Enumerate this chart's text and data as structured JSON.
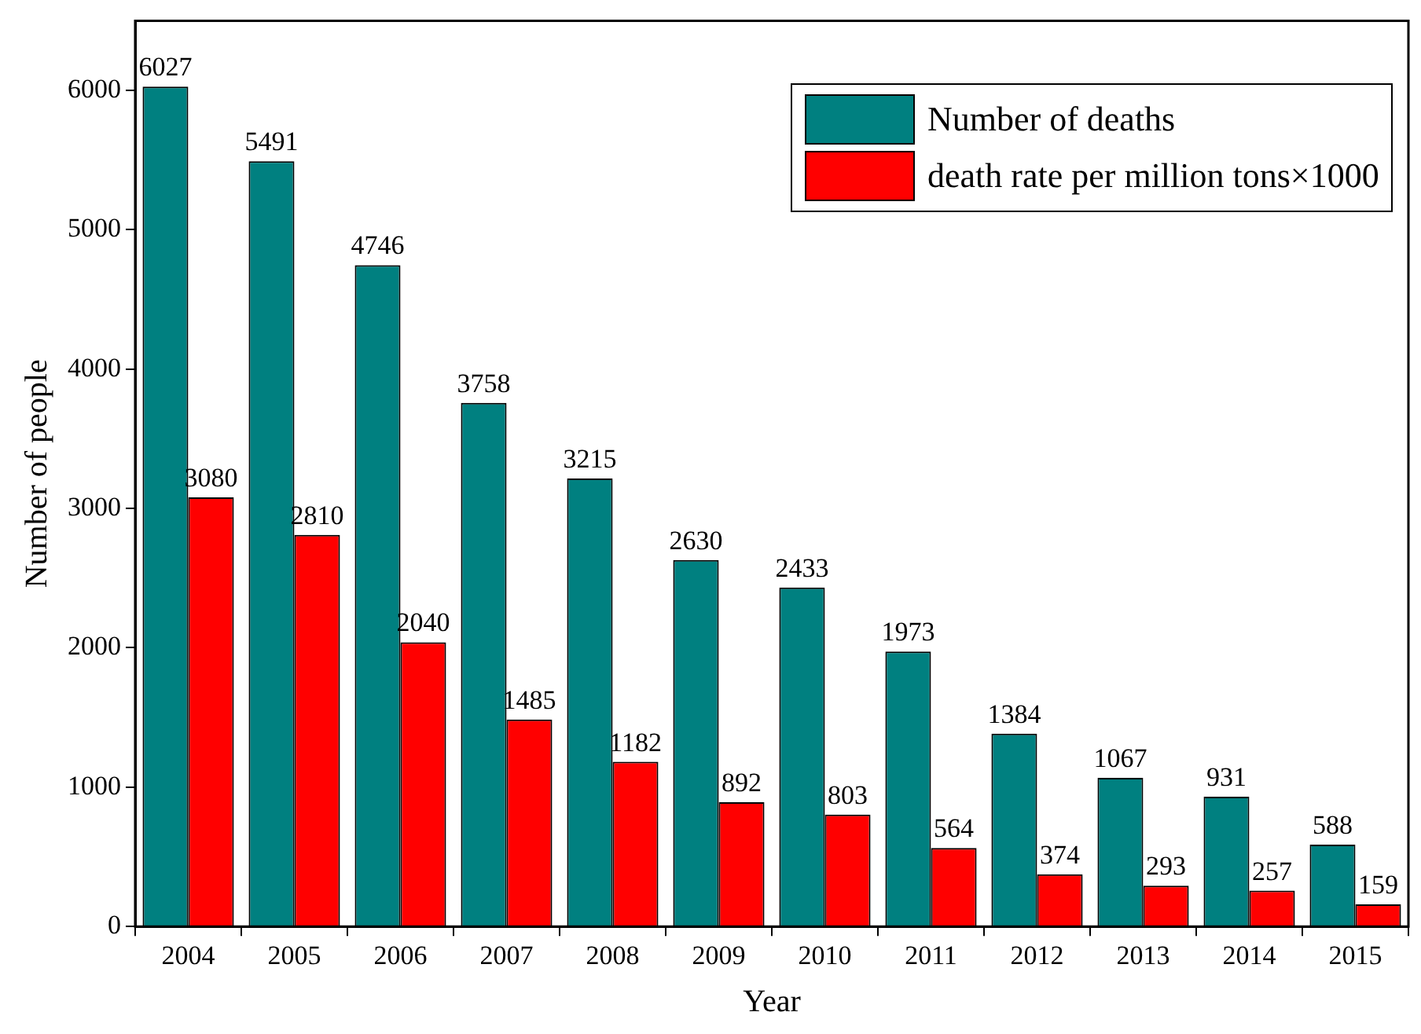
{
  "chart_data": {
    "type": "bar",
    "xlabel": "Year",
    "ylabel": "Number of people",
    "categories": [
      "2004",
      "2005",
      "2006",
      "2007",
      "2008",
      "2009",
      "2010",
      "2011",
      "2012",
      "2013",
      "2014",
      "2015"
    ],
    "series": [
      {
        "name": "Number of deaths",
        "color": "#008080",
        "values": [
          6027,
          5491,
          4746,
          3758,
          3215,
          2630,
          2433,
          1973,
          1384,
          1067,
          931,
          588
        ]
      },
      {
        "name": "death rate per million tons×1000",
        "color": "#ff0000",
        "values": [
          3080,
          2810,
          2040,
          1485,
          1182,
          892,
          803,
          564,
          374,
          293,
          257,
          159
        ]
      }
    ],
    "ylim": [
      0,
      6500
    ],
    "yticks": [
      0,
      1000,
      2000,
      3000,
      4000,
      5000,
      6000
    ],
    "data_labels": true,
    "legend": "top right",
    "grid": false
  }
}
